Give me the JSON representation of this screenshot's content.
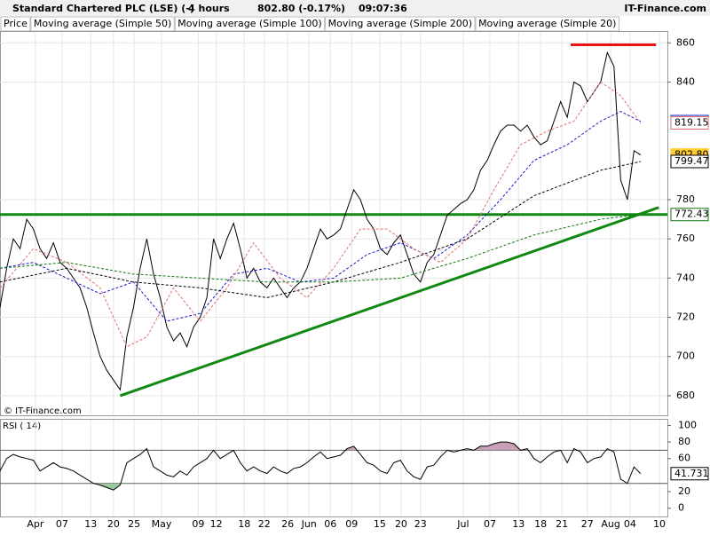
{
  "header": {
    "title": "Standard Chartered PLC (LSE) (-)",
    "interval": "4 hours",
    "price": "802.80 (-0.17%)",
    "time": "09:07:36",
    "brand": "IT-Finance.com"
  },
  "copyright": "© IT-Finance.com",
  "chart_data": [
    {
      "type": "line",
      "xlim": [
        0,
        100
      ],
      "ylim": [
        670,
        866
      ],
      "yticks": [
        860,
        840,
        780,
        760,
        740,
        720,
        700,
        680
      ],
      "series": [
        {
          "name": "Price",
          "color": "#000000",
          "x": [
            0,
            1,
            2,
            3,
            4,
            5,
            6,
            7,
            8,
            9,
            10,
            11,
            12,
            13,
            14,
            15,
            16,
            17,
            18,
            19,
            20,
            21,
            22,
            23,
            24,
            25,
            26,
            27,
            28,
            29,
            30,
            31,
            32,
            33,
            34,
            35,
            36,
            37,
            38,
            39,
            40,
            41,
            42,
            43,
            44,
            45,
            46,
            47,
            48,
            49,
            50,
            51,
            52,
            53,
            54,
            55,
            56,
            57,
            58,
            59,
            60,
            61,
            62,
            63,
            64,
            65,
            66,
            67,
            68,
            69,
            70,
            71,
            72,
            73,
            74,
            75,
            76,
            77,
            78,
            79,
            80,
            81,
            82,
            83,
            84,
            85,
            86,
            87,
            88,
            89,
            90,
            91,
            92,
            93,
            94,
            95,
            96
          ],
          "values": [
            725,
            745,
            760,
            755,
            770,
            765,
            755,
            750,
            758,
            748,
            745,
            740,
            735,
            725,
            712,
            700,
            693,
            688,
            683,
            710,
            725,
            745,
            760,
            742,
            730,
            715,
            708,
            712,
            705,
            715,
            720,
            730,
            760,
            750,
            760,
            768,
            755,
            740,
            745,
            738,
            735,
            740,
            735,
            730,
            735,
            738,
            745,
            755,
            765,
            760,
            762,
            765,
            775,
            785,
            780,
            770,
            765,
            755,
            752,
            758,
            762,
            752,
            742,
            738,
            748,
            752,
            762,
            772,
            775,
            778,
            780,
            785,
            795,
            800,
            808,
            815,
            818,
            818,
            815,
            818,
            812,
            808,
            810,
            820,
            830,
            822,
            840,
            838,
            830,
            835,
            840,
            855,
            848,
            790,
            780,
            805,
            802.8
          ]
        },
        {
          "name": "Moving average (Simple 50)",
          "color": "#1a1acc",
          "x": [
            0,
            5,
            10,
            15,
            20,
            25,
            30,
            35,
            40,
            45,
            50,
            55,
            60,
            65,
            70,
            75,
            80,
            85,
            90,
            93,
            96
          ],
          "values": [
            745,
            748,
            740,
            732,
            738,
            718,
            722,
            742,
            745,
            738,
            740,
            752,
            758,
            750,
            762,
            780,
            800,
            808,
            820,
            825,
            819.81
          ]
        },
        {
          "name": "Moving average (Simple 100)",
          "color": "#000000",
          "x": [
            0,
            10,
            20,
            30,
            40,
            50,
            60,
            70,
            80,
            90,
            96
          ],
          "values": [
            738,
            745,
            738,
            735,
            730,
            738,
            748,
            760,
            782,
            795,
            799.47
          ]
        },
        {
          "name": "Moving average (Simple 200)",
          "color": "#117711",
          "x": [
            0,
            10,
            20,
            30,
            40,
            50,
            60,
            70,
            80,
            90,
            96
          ],
          "values": [
            745,
            748,
            742,
            740,
            738,
            738,
            740,
            750,
            762,
            770,
            772.43
          ]
        },
        {
          "name": "Moving average (Simple 20)",
          "color": "#e07070",
          "x": [
            0,
            5,
            10,
            15,
            19,
            22,
            26,
            30,
            34,
            38,
            42,
            46,
            50,
            54,
            58,
            62,
            66,
            70,
            74,
            78,
            82,
            86,
            90,
            93,
            96
          ],
          "values": [
            735,
            755,
            748,
            735,
            705,
            710,
            735,
            718,
            735,
            758,
            740,
            730,
            745,
            765,
            765,
            755,
            748,
            760,
            785,
            808,
            815,
            820,
            840,
            833,
            819.15
          ]
        }
      ],
      "trendlines": [
        {
          "color": "#118811",
          "x": [
            0,
            100
          ],
          "values": [
            772.43,
            772.43
          ]
        },
        {
          "color": "#118811",
          "x": [
            18,
            98.7
          ],
          "values": [
            680,
            776
          ]
        },
        {
          "color": "#ee1111",
          "x": [
            85.5,
            98.3
          ],
          "values": [
            859,
            859
          ]
        }
      ],
      "last_values": [
        {
          "value": 819.81,
          "color": "#1a1acc"
        },
        {
          "value": 819.15,
          "color": "#e07070"
        },
        {
          "value": 802.8,
          "label": "802.80",
          "color": "#ffcc33"
        },
        {
          "value": 799.47,
          "color": "#000000"
        },
        {
          "value": 772.43,
          "color": "#117711"
        }
      ]
    },
    {
      "type": "line",
      "title": "RSI ( 14)",
      "xlim": [
        0,
        100
      ],
      "ylim": [
        -10,
        108
      ],
      "yticks": [
        100,
        80,
        60,
        20,
        0
      ],
      "levels": [
        70,
        30
      ],
      "last_value": 41.731,
      "color": "#000000",
      "x": [
        0,
        1,
        2,
        3,
        4,
        5,
        6,
        7,
        8,
        9,
        10,
        11,
        12,
        13,
        14,
        15,
        16,
        17,
        18,
        19,
        20,
        21,
        22,
        23,
        24,
        25,
        26,
        27,
        28,
        29,
        30,
        31,
        32,
        33,
        34,
        35,
        36,
        37,
        38,
        39,
        40,
        41,
        42,
        43,
        44,
        45,
        46,
        47,
        48,
        49,
        50,
        51,
        52,
        53,
        54,
        55,
        56,
        57,
        58,
        59,
        60,
        61,
        62,
        63,
        64,
        65,
        66,
        67,
        68,
        69,
        70,
        71,
        72,
        73,
        74,
        75,
        76,
        77,
        78,
        79,
        80,
        81,
        82,
        83,
        84,
        85,
        86,
        87,
        88,
        89,
        90,
        91,
        92,
        93,
        94,
        95,
        96
      ],
      "values": [
        45,
        60,
        65,
        62,
        60,
        58,
        45,
        50,
        55,
        50,
        48,
        45,
        40,
        35,
        30,
        28,
        25,
        22,
        28,
        55,
        60,
        65,
        72,
        50,
        45,
        40,
        38,
        45,
        40,
        50,
        55,
        60,
        70,
        60,
        65,
        70,
        55,
        45,
        50,
        45,
        42,
        50,
        45,
        42,
        48,
        50,
        55,
        62,
        68,
        60,
        62,
        64,
        72,
        75,
        65,
        55,
        52,
        45,
        42,
        55,
        58,
        45,
        38,
        35,
        50,
        52,
        62,
        70,
        68,
        70,
        72,
        70,
        75,
        75,
        78,
        80,
        80,
        78,
        70,
        72,
        60,
        55,
        62,
        68,
        70,
        55,
        72,
        68,
        55,
        60,
        62,
        72,
        68,
        35,
        30,
        50,
        41.731
      ],
      "xticks": [
        {
          "value": 5.3,
          "label": "Apr"
        },
        {
          "value": 9.3,
          "label": "07"
        },
        {
          "value": 13.6,
          "label": "13"
        },
        {
          "value": 17,
          "label": "20"
        },
        {
          "value": 20.1,
          "label": "25"
        },
        {
          "value": 24.2,
          "label": "May"
        },
        {
          "value": 29.7,
          "label": "09"
        },
        {
          "value": 32.4,
          "label": "12"
        },
        {
          "value": 36.6,
          "label": "18"
        },
        {
          "value": 39.6,
          "label": "22"
        },
        {
          "value": 43.1,
          "label": "26"
        },
        {
          "value": 46.3,
          "label": "Jun"
        },
        {
          "value": 49.5,
          "label": "06"
        },
        {
          "value": 52.7,
          "label": "09"
        },
        {
          "value": 56.9,
          "label": "15"
        },
        {
          "value": 60.1,
          "label": "20"
        },
        {
          "value": 63,
          "label": "23"
        },
        {
          "value": 69.4,
          "label": "Jul"
        },
        {
          "value": 73.4,
          "label": "07"
        },
        {
          "value": 77.7,
          "label": "13"
        },
        {
          "value": 81,
          "label": "18"
        },
        {
          "value": 84.2,
          "label": "21"
        },
        {
          "value": 88,
          "label": "27"
        },
        {
          "value": 91.5,
          "label": "Aug"
        },
        {
          "value": 94.4,
          "label": "04"
        },
        {
          "value": 98.8,
          "label": "10"
        }
      ]
    }
  ]
}
